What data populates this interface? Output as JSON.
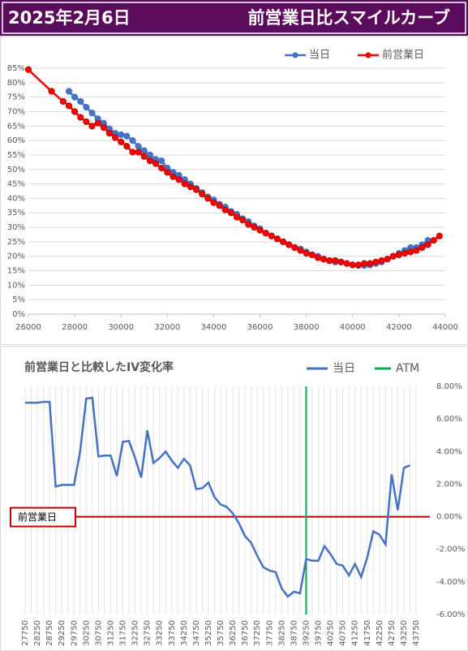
{
  "header": {
    "date": "2025年2月6日",
    "title": "前営業日比スマイルカーブ"
  },
  "chart_data": [
    {
      "type": "line",
      "legend": "top-right",
      "grid": true,
      "xlim": [
        26000,
        44000
      ],
      "xticks": [
        26000,
        28000,
        30000,
        32000,
        34000,
        36000,
        38000,
        40000,
        42000,
        44000
      ],
      "ylim": [
        0,
        85
      ],
      "yticks": [
        {
          "value": 0,
          "label": "0%"
        },
        {
          "value": 5,
          "label": "5%"
        },
        {
          "value": 10,
          "label": "10%"
        },
        {
          "value": 15,
          "label": "15%"
        },
        {
          "value": 20,
          "label": "20%"
        },
        {
          "value": 25,
          "label": "25%"
        },
        {
          "value": 30,
          "label": "30%"
        },
        {
          "value": 35,
          "label": "35%"
        },
        {
          "value": 40,
          "label": "40%"
        },
        {
          "value": 45,
          "label": "45%"
        },
        {
          "value": 50,
          "label": "50%"
        },
        {
          "value": 55,
          "label": "55%"
        },
        {
          "value": 60,
          "label": "60%"
        },
        {
          "value": 65,
          "label": "65%"
        },
        {
          "value": 70,
          "label": "70%"
        },
        {
          "value": 75,
          "label": "75%"
        },
        {
          "value": 80,
          "label": "80%"
        },
        {
          "value": 85,
          "label": "85%"
        }
      ],
      "series": [
        {
          "name": "当日",
          "color": "#4472c4",
          "x": [
            27750,
            28000,
            28250,
            28500,
            28750,
            29000,
            29250,
            29500,
            29750,
            30000,
            30250,
            30500,
            30750,
            31000,
            31250,
            31500,
            31750,
            32000,
            32250,
            32500,
            32750,
            33000,
            33250,
            33500,
            33750,
            34000,
            34250,
            34500,
            34750,
            35000,
            35250,
            35500,
            35750,
            36000,
            36250,
            36500,
            36750,
            37000,
            37250,
            37500,
            37750,
            38000,
            38250,
            38500,
            38750,
            39000,
            39250,
            39500,
            39750,
            40000,
            40250,
            40500,
            40750,
            41000,
            41250,
            41500,
            41750,
            42000,
            42250,
            42500,
            42750,
            43000,
            43250
          ],
          "values": [
            77,
            75,
            73.5,
            71.5,
            69.5,
            67.5,
            66,
            64,
            62.5,
            62,
            61.5,
            60,
            58,
            56.5,
            55,
            53.5,
            53,
            50.5,
            49,
            48,
            46.5,
            45,
            43.5,
            42,
            40.5,
            39.5,
            38,
            37,
            35.5,
            34.5,
            33,
            32,
            30.5,
            29.5,
            28,
            27,
            26,
            25,
            24,
            23,
            22.5,
            21.5,
            20.5,
            20,
            19,
            18.5,
            18,
            18,
            17.5,
            17,
            16.8,
            16.8,
            17,
            17.5,
            18,
            19,
            20,
            21,
            22,
            23,
            23,
            24,
            25.5
          ]
        },
        {
          "name": "前営業日",
          "color": "#ff0000",
          "x": [
            26000,
            27000,
            27500,
            27750,
            28000,
            28250,
            28500,
            28750,
            29000,
            29250,
            29500,
            29750,
            30000,
            30250,
            30500,
            30750,
            31000,
            31250,
            31500,
            31750,
            32000,
            32250,
            32500,
            32750,
            33000,
            33250,
            33500,
            33750,
            34000,
            34250,
            34500,
            34750,
            35000,
            35250,
            35500,
            35750,
            36000,
            36250,
            36500,
            36750,
            37000,
            37250,
            37500,
            37750,
            38000,
            38250,
            38500,
            38750,
            39000,
            39250,
            39500,
            39750,
            40000,
            40250,
            40500,
            40750,
            41000,
            41250,
            41500,
            41750,
            42000,
            42250,
            42500,
            42750,
            43000,
            43250,
            43500,
            43750
          ],
          "values": [
            84.5,
            77,
            73.5,
            72,
            70,
            68,
            66.5,
            65,
            66,
            64.5,
            62.5,
            61,
            59.5,
            58,
            56,
            56,
            54.5,
            53,
            52,
            50.5,
            49,
            47.5,
            46.5,
            45,
            44,
            43,
            41.5,
            40,
            38.5,
            37.5,
            36,
            35,
            33.5,
            32.5,
            31,
            30,
            29,
            28,
            27,
            26,
            25,
            24,
            23,
            22,
            21,
            20.5,
            19.5,
            19,
            18.5,
            18.5,
            18,
            17.5,
            17,
            17,
            17.5,
            17.5,
            18,
            18.5,
            19,
            20,
            20.5,
            21,
            21.5,
            22,
            23,
            24,
            25.5,
            27
          ]
        }
      ]
    },
    {
      "type": "line",
      "title": "前営業日と比較したIV変化率",
      "legend": "top-right",
      "grid": true,
      "categories": [
        "27750",
        null,
        "28250",
        null,
        "28750",
        null,
        "29250",
        null,
        "29750",
        null,
        "30250",
        null,
        "30750",
        null,
        "31250",
        null,
        "31750",
        null,
        "32250",
        null,
        "32750",
        null,
        "33250",
        null,
        "33750",
        null,
        "34250",
        null,
        "34750",
        null,
        "35250",
        null,
        "35750",
        null,
        "36250",
        null,
        "36750",
        null,
        "37250",
        null,
        "37750",
        null,
        "38250",
        null,
        "38750",
        null,
        "39250",
        null,
        "39750",
        null,
        "40250",
        null,
        "40750",
        null,
        "41250",
        null,
        "41750",
        null,
        "42250",
        null,
        "42750",
        null,
        "43250",
        null,
        "43750"
      ],
      "y2lim": [
        -6,
        8
      ],
      "y2ticks": [
        {
          "value": 8,
          "label": "8.00%"
        },
        {
          "value": 6,
          "label": "6.00%"
        },
        {
          "value": 4,
          "label": "4.00%"
        },
        {
          "value": 2,
          "label": "2.00%"
        },
        {
          "value": 0,
          "label": "0.00%"
        },
        {
          "value": -2,
          "label": "-2.00%"
        },
        {
          "value": -4,
          "label": "-4.00%"
        },
        {
          "value": -6,
          "label": "-6.00%"
        }
      ],
      "series": [
        {
          "name": "当日",
          "color": "#4472c4",
          "axis": "y2",
          "values": [
            7.0,
            7.0,
            7.0,
            7.05,
            7.05,
            1.85,
            1.95,
            1.95,
            1.95,
            4.0,
            7.25,
            7.3,
            3.7,
            3.75,
            3.75,
            2.5,
            4.6,
            4.65,
            3.6,
            2.4,
            5.3,
            3.3,
            3.6,
            4.0,
            3.45,
            3.0,
            3.55,
            3.15,
            1.7,
            1.75,
            2.1,
            1.2,
            0.75,
            0.6,
            0.2,
            -0.4,
            -1.2,
            -1.6,
            -2.4,
            -3.1,
            -3.3,
            -3.4,
            -4.4,
            -4.9,
            -4.6,
            -4.7,
            -2.6,
            -2.7,
            -2.7,
            -1.8,
            -2.3,
            -2.9,
            -3.0,
            -3.6,
            -2.9,
            -3.7,
            -2.5,
            -0.9,
            -1.1,
            -1.7,
            2.6,
            0.4,
            3.0,
            3.15,
            null
          ]
        }
      ],
      "atm": {
        "name": "ATM",
        "color": "#00b050",
        "category": "39250"
      },
      "reference_line": {
        "label": "前営業日",
        "value": 0,
        "color": "#c00000"
      }
    }
  ]
}
